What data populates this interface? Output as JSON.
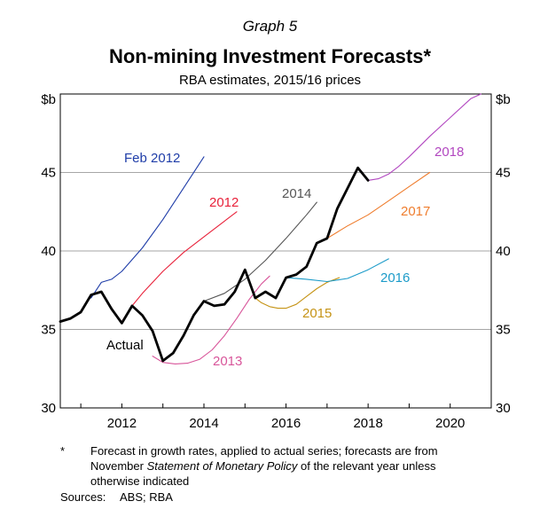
{
  "header": {
    "graph_label": "Graph 5",
    "title": "Non-mining Investment Forecasts*",
    "subtitle": "RBA estimates, 2015/16 prices"
  },
  "chart_data": {
    "type": "line",
    "title": "Non-mining Investment Forecasts*",
    "subtitle": "RBA estimates, 2015/16 prices",
    "y_unit_left": "$b",
    "y_unit_right": "$b",
    "xlim": [
      2010.5,
      2021
    ],
    "ylim": [
      30,
      50
    ],
    "x_ticks": [
      2012,
      2014,
      2016,
      2018,
      2020
    ],
    "x_tick_labels": [
      "2012",
      "2014",
      "2016",
      "2018",
      "2020"
    ],
    "y_ticks": [
      30,
      35,
      40,
      45
    ],
    "y_tick_labels": [
      "30",
      "35",
      "40",
      "45"
    ],
    "gridlines": [
      35,
      40,
      45
    ],
    "series": [
      {
        "name": "Actual",
        "label": "Actual",
        "color": "#000000",
        "width": 2.8,
        "points": [
          [
            2010.5,
            35.5
          ],
          [
            2010.75,
            35.7
          ],
          [
            2011,
            36.1
          ],
          [
            2011.25,
            37.2
          ],
          [
            2011.5,
            37.4
          ],
          [
            2011.75,
            36.3
          ],
          [
            2012,
            35.4
          ],
          [
            2012.25,
            36.5
          ],
          [
            2012.5,
            35.9
          ],
          [
            2012.75,
            34.9
          ],
          [
            2013,
            33.0
          ],
          [
            2013.25,
            33.5
          ],
          [
            2013.5,
            34.6
          ],
          [
            2013.75,
            35.9
          ],
          [
            2014,
            36.8
          ],
          [
            2014.25,
            36.5
          ],
          [
            2014.5,
            36.6
          ],
          [
            2014.75,
            37.4
          ],
          [
            2015,
            38.8
          ],
          [
            2015.25,
            37.0
          ],
          [
            2015.5,
            37.4
          ],
          [
            2015.75,
            37.0
          ],
          [
            2016,
            38.3
          ],
          [
            2016.25,
            38.5
          ],
          [
            2016.5,
            39.0
          ],
          [
            2016.75,
            40.5
          ],
          [
            2017,
            40.8
          ],
          [
            2017.25,
            42.7
          ],
          [
            2017.5,
            44.0
          ],
          [
            2017.75,
            45.3
          ],
          [
            2018,
            44.5
          ]
        ]
      },
      {
        "name": "Feb 2012",
        "label": "Feb 2012",
        "color": "#1f3da8",
        "width": 1.1,
        "points": [
          [
            2011.25,
            37.0
          ],
          [
            2011.5,
            38.0
          ],
          [
            2011.75,
            38.2
          ],
          [
            2012,
            38.7
          ],
          [
            2012.5,
            40.2
          ],
          [
            2013,
            42.0
          ],
          [
            2013.5,
            44.0
          ],
          [
            2014,
            46.0
          ]
        ]
      },
      {
        "name": "2012",
        "label": "2012",
        "color": "#e8213a",
        "width": 1.1,
        "points": [
          [
            2012,
            35.5
          ],
          [
            2012.25,
            36.5
          ],
          [
            2012.5,
            37.3
          ],
          [
            2013,
            38.7
          ],
          [
            2013.5,
            39.9
          ],
          [
            2014,
            40.9
          ],
          [
            2014.5,
            41.9
          ],
          [
            2014.8,
            42.5
          ]
        ]
      },
      {
        "name": "2013",
        "label": "2013",
        "color": "#d8559a",
        "width": 1.1,
        "points": [
          [
            2012.75,
            33.3
          ],
          [
            2013.0,
            32.9
          ],
          [
            2013.3,
            32.8
          ],
          [
            2013.6,
            32.85
          ],
          [
            2013.9,
            33.1
          ],
          [
            2014.2,
            33.7
          ],
          [
            2014.5,
            34.6
          ],
          [
            2014.8,
            35.7
          ],
          [
            2015.1,
            36.9
          ],
          [
            2015.4,
            37.9
          ],
          [
            2015.6,
            38.4
          ]
        ]
      },
      {
        "name": "2014",
        "label": "2014",
        "color": "#555555",
        "width": 1.1,
        "points": [
          [
            2014,
            36.8
          ],
          [
            2014.5,
            37.3
          ],
          [
            2015,
            38.2
          ],
          [
            2015.5,
            39.4
          ],
          [
            2016,
            40.8
          ],
          [
            2016.5,
            42.3
          ],
          [
            2016.75,
            43.1
          ]
        ]
      },
      {
        "name": "2015",
        "label": "2015",
        "color": "#c59315",
        "width": 1.1,
        "points": [
          [
            2015.25,
            37.0
          ],
          [
            2015.4,
            36.7
          ],
          [
            2015.6,
            36.45
          ],
          [
            2015.8,
            36.35
          ],
          [
            2016,
            36.35
          ],
          [
            2016.25,
            36.6
          ],
          [
            2016.5,
            37.1
          ],
          [
            2016.75,
            37.6
          ],
          [
            2017,
            38.0
          ],
          [
            2017.3,
            38.3
          ]
        ]
      },
      {
        "name": "2016",
        "label": "2016",
        "color": "#1c9bc9",
        "width": 1.1,
        "points": [
          [
            2016,
            38.3
          ],
          [
            2016.5,
            38.2
          ],
          [
            2017,
            38.05
          ],
          [
            2017.5,
            38.25
          ],
          [
            2018,
            38.8
          ],
          [
            2018.5,
            39.5
          ]
        ]
      },
      {
        "name": "2017",
        "label": "2017",
        "color": "#ef7d2e",
        "width": 1.1,
        "points": [
          [
            2017,
            40.8
          ],
          [
            2017.5,
            41.6
          ],
          [
            2018,
            42.3
          ],
          [
            2018.5,
            43.2
          ],
          [
            2019,
            44.1
          ],
          [
            2019.5,
            45.0
          ]
        ]
      },
      {
        "name": "2018",
        "label": "2018",
        "color": "#b247c0",
        "width": 1.1,
        "points": [
          [
            2018,
            44.5
          ],
          [
            2018.25,
            44.6
          ],
          [
            2018.5,
            44.9
          ],
          [
            2018.75,
            45.4
          ],
          [
            2019,
            46.0
          ],
          [
            2019.5,
            47.3
          ],
          [
            2020,
            48.5
          ],
          [
            2020.5,
            49.7
          ],
          [
            2020.75,
            50.0
          ]
        ]
      }
    ]
  },
  "footnote": {
    "mark": "*",
    "line1": "Forecast in growth rates, applied to actual series; forecasts are from",
    "line2_pre": "November ",
    "line2_italic": "Statement of Monetary Policy",
    "line2_post": " of the relevant year unless",
    "line3": "otherwise indicated"
  },
  "sources": {
    "label": "Sources:",
    "text": "ABS; RBA"
  }
}
